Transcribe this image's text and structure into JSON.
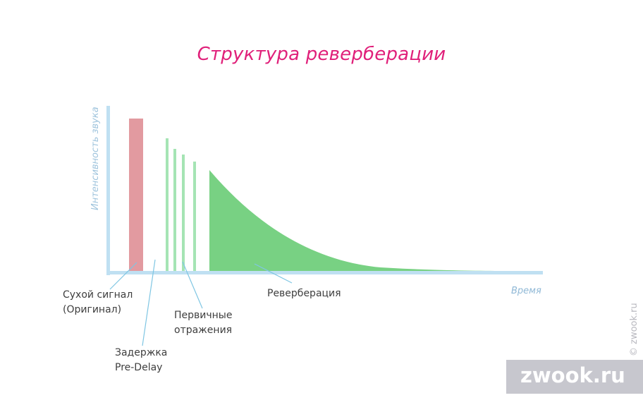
{
  "title": "Структура реверберации",
  "axes": {
    "y_label": "Интенсивность звука",
    "x_label": "Время"
  },
  "labels": {
    "dry": [
      "Сухой сигнал",
      "(Оригинал)"
    ],
    "predelay": [
      "Задержка",
      "Pre-Delay"
    ],
    "early": [
      "Первичные",
      "отражения"
    ],
    "reverb": "Реверберация"
  },
  "watermark": {
    "text": "zwook.ru",
    "vertical": "© zwook.ru"
  },
  "colors": {
    "title": "#e0207a",
    "axis": "#bfe0f2",
    "dry": "#e29aa0",
    "early": "#a5e4b4",
    "reverb": "#78d183",
    "pointer": "#7fc6e3"
  }
}
